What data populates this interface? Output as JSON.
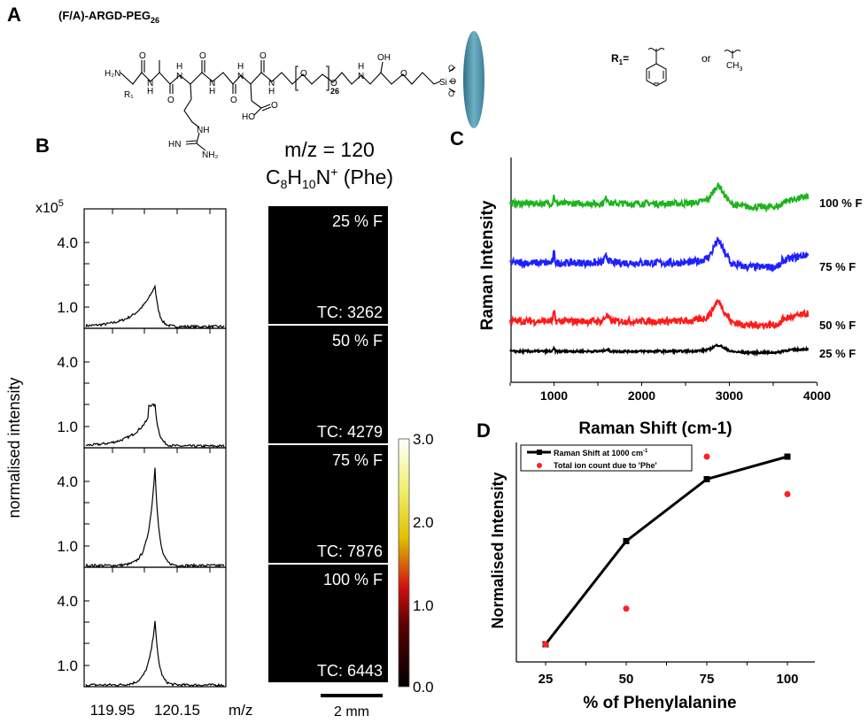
{
  "panel_labels": {
    "a": "A",
    "b": "B",
    "c": "C",
    "d": "D"
  },
  "panel_a": {
    "title_main": "(F/A)-ARGD-PEG",
    "title_sub": "26",
    "repeat_sub": "26",
    "r1_label": "R",
    "r1_sub": "1",
    "r1_eq": "R",
    "r1_eq_sub": "1",
    "r1_eq_sign": "=",
    "or": "or",
    "methyl": "CH",
    "methyl_sub": "3",
    "atoms": {
      "h2n": "H₂N",
      "r1": "R₁",
      "o": "O",
      "nh": "N",
      "h": "H",
      "hn": "HN",
      "nh2": "NH₂",
      "nh_side": "NH",
      "ho": "HO",
      "oh": "OH",
      "si": "Si"
    }
  },
  "panel_b": {
    "title": "m/z = 120",
    "formula": {
      "c": "C",
      "c_sub": "8",
      "h": "H",
      "h_sub": "10",
      "n": "N",
      "n_sup": "+",
      "suffix": " (Phe)"
    },
    "y_multiplier": "x10",
    "y_multiplier_exp": "5",
    "ylabel": "normalised intensity",
    "yticks": [
      "4.0",
      "1.0"
    ],
    "xticks": [
      "119.95",
      "120.15"
    ],
    "xunit": "m/z",
    "samples": [
      {
        "label": "25 % F",
        "tc": "TC: 3262"
      },
      {
        "label": "50 % F",
        "tc": "TC: 4279"
      },
      {
        "label": "75 % F",
        "tc": "TC: 7876"
      },
      {
        "label": "100 % F",
        "tc": "TC: 6443"
      }
    ],
    "colorbar_ticks": [
      "3.0",
      "2.0",
      "1.0",
      "0.0"
    ],
    "scalebar": "2 mm"
  },
  "chart_data": [
    {
      "panel": "B",
      "type": "line",
      "xlabel": "m/z",
      "ylabel": "normalised intensity",
      "y_multiplier": "x10^5",
      "xlim": [
        119.86,
        120.3
      ],
      "ylim": [
        0,
        5.5
      ],
      "series": [
        {
          "name": "25 % F",
          "peak_mz": 120.08,
          "peak_intensity": 1.9
        },
        {
          "name": "50 % F",
          "peak_mz": 120.08,
          "peak_intensity": 1.9
        },
        {
          "name": "75 % F",
          "peak_mz": 120.08,
          "peak_intensity": 4.6
        },
        {
          "name": "100 % F",
          "peak_mz": 120.08,
          "peak_intensity": 3.0
        }
      ]
    },
    {
      "panel": "C",
      "type": "line",
      "xlabel": "Raman Shift (cm-1)",
      "ylabel": "Raman Intensity",
      "xlim": [
        500,
        4000
      ],
      "xticks": [
        "1000",
        "2000",
        "3000",
        "4000"
      ],
      "series": [
        {
          "name": "100 % F",
          "color": "#1db31d",
          "peaks_cm-1": [
            1000,
            1600,
            2870
          ]
        },
        {
          "name": "75 % F",
          "color": "#2020ff",
          "peaks_cm-1": [
            1000,
            1600,
            2870
          ]
        },
        {
          "name": "50 % F",
          "color": "#ff1a1a",
          "peaks_cm-1": [
            1000,
            1600,
            2870
          ]
        },
        {
          "name": "25 % F",
          "color": "#000000",
          "peaks_cm-1": [
            1000,
            1600,
            2870
          ]
        }
      ]
    },
    {
      "panel": "D",
      "type": "line",
      "xlabel": "% of Phenylalanine",
      "ylabel": "Normalised Intensity",
      "categories": [
        25,
        50,
        75,
        100
      ],
      "xticks": [
        "25",
        "50",
        "75",
        "100"
      ],
      "ylim": [
        -0.15,
        1.1
      ],
      "legend_position": "top-left",
      "series": [
        {
          "name": "Raman Shift at 1000 cm",
          "name_sup": "-1",
          "type": "line+marker",
          "color": "#000000",
          "values": [
            0,
            0.55,
            0.88,
            1.0
          ]
        },
        {
          "name": "Total ion count due to 'Phe'",
          "type": "scatter",
          "color": "#ff2020",
          "values": [
            0,
            0.19,
            1.0,
            0.8
          ]
        }
      ]
    }
  ]
}
